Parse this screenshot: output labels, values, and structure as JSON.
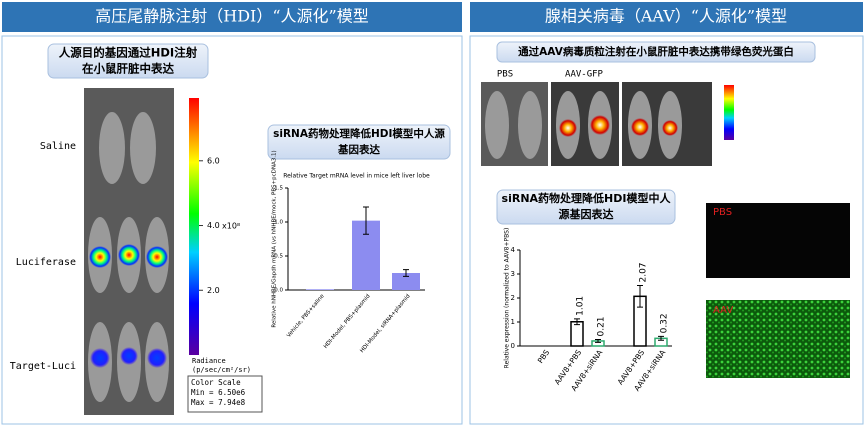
{
  "left": {
    "title": "高压尾静脉注射（HDI）“人源化”模型",
    "callout": [
      "人源目的基因通过HDI注射",
      "在小鼠肝脏中表达"
    ],
    "rows": [
      "Saline",
      "Luciferase",
      "Target-Luci"
    ],
    "scale": {
      "lim": [
        0,
        7.94
      ],
      "ticks": [
        {
          "value": 2,
          "label": "2.0"
        },
        {
          "value": 4,
          "label": "4.0"
        },
        {
          "value": 6,
          "label": "6.0"
        }
      ],
      "unit": "x10⁸",
      "label": [
        "Radiance",
        "(p/sec/cm²/sr)"
      ],
      "box": [
        "Color Scale",
        "Min = 6.50e6",
        "Max = 7.94e8"
      ]
    },
    "heading": [
      "siRNA药物处理降低HDI模型中人源",
      "基因表达"
    ],
    "chart": {
      "type": "bar",
      "title": "Relative Target mRNA level in mice left liver lobe",
      "ylabel": "Relative hNHBE/Gapdh mRNA (vs hNHBE/mock, PBS+pcDNA3.1)",
      "categories": [
        "Vehicle, PBS+saline",
        "HDI-Model, PBS+plasmid",
        "HDI-Model, siRNA+plasmid"
      ],
      "values": [
        0.01,
        1.02,
        0.25
      ],
      "errors": [
        0,
        0.2,
        0.05
      ],
      "color": "#8c8cf0",
      "ylim": [
        0,
        1.5
      ],
      "yticks": [
        {
          "value": 0,
          "label": "0.0"
        },
        {
          "value": 0.5,
          "label": "0.5"
        },
        {
          "value": 1,
          "label": "1.0"
        },
        {
          "value": 1.5,
          "label": "1.5"
        }
      ]
    }
  },
  "right": {
    "title": "腺相关病毒（AAV）“人源化”模型",
    "callout": [
      "通过AAV病毒质粒注射在小鼠肝脏中表达携带绿色荧光蛋白"
    ],
    "image_labels": [
      "PBS",
      "AAV-GFP"
    ],
    "heading": [
      "siRNA药物处理降低HDI模型中人",
      "源基因表达"
    ],
    "chart": {
      "type": "bar",
      "ylabel": "Relative expression (normalized to AAV8+PBS)",
      "categories": [
        "PBS",
        "AAV8+PBS",
        "AAV8+siRNA",
        "AAV8+PBS",
        "AAV8+siRNA"
      ],
      "values": [
        0,
        1.01,
        0.21,
        2.07,
        0.32
      ],
      "errors": [
        0,
        0.12,
        0.06,
        0.45,
        0.08
      ],
      "colors": [
        "#000000",
        "#000000",
        "#2eaa6f",
        "#000000",
        "#2eaa6f"
      ],
      "ylim": [
        0,
        4
      ],
      "yticks": [
        0,
        1,
        2,
        3,
        4
      ]
    },
    "micro_labels": [
      "PBS",
      "AAV"
    ]
  }
}
